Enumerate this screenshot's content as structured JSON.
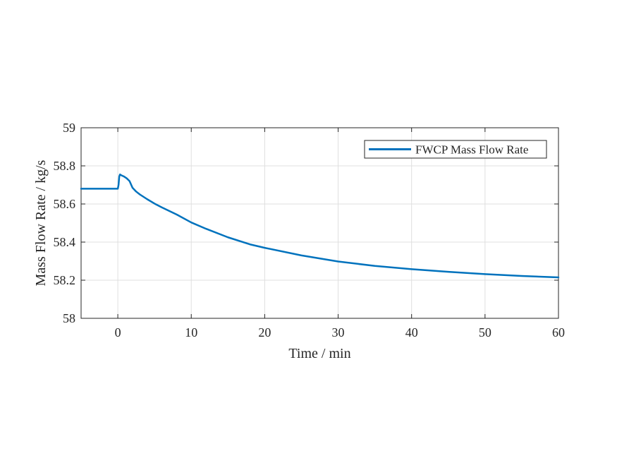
{
  "chart_data": {
    "type": "line",
    "title": "",
    "xlabel": "Time / min",
    "ylabel": "Mass Flow Rate / kg/s",
    "xlim": [
      -5,
      60
    ],
    "ylim": [
      58,
      59
    ],
    "xticks": [
      0,
      10,
      20,
      30,
      40,
      50,
      60
    ],
    "yticks": [
      58,
      58.2,
      58.4,
      58.6,
      58.8,
      59
    ],
    "xtick_labels": [
      "0",
      "10",
      "20",
      "30",
      "40",
      "50",
      "60"
    ],
    "ytick_labels": [
      "58",
      "58.2",
      "58.4",
      "58.6",
      "58.8",
      "59"
    ],
    "grid": true,
    "legend": {
      "location": "top-right",
      "entries": [
        "FWCP Mass Flow Rate"
      ]
    },
    "series": [
      {
        "name": "FWCP Mass Flow Rate",
        "color": "#0072BD",
        "x": [
          -5,
          -2,
          0,
          0.1,
          0.2,
          0.3,
          0.5,
          0.8,
          1.2,
          1.6,
          2.0,
          2.5,
          3,
          4,
          5,
          6,
          8,
          10,
          12,
          15,
          18,
          20,
          25,
          30,
          35,
          40,
          45,
          50,
          55,
          60
        ],
        "y": [
          58.68,
          58.68,
          58.68,
          58.7,
          58.745,
          58.755,
          58.75,
          58.745,
          58.735,
          58.72,
          58.685,
          58.665,
          58.65,
          58.625,
          58.602,
          58.582,
          58.545,
          58.503,
          58.47,
          58.425,
          58.388,
          58.37,
          58.33,
          58.298,
          58.275,
          58.258,
          58.244,
          58.232,
          58.222,
          58.215
        ]
      }
    ]
  }
}
